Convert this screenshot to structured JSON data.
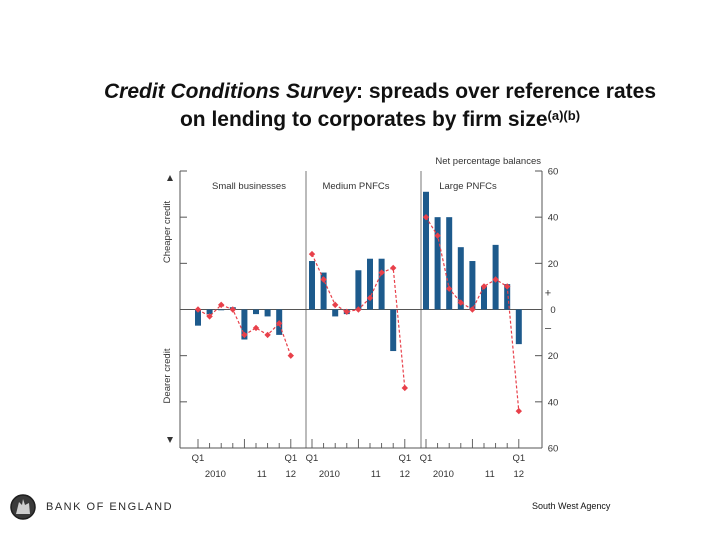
{
  "title": {
    "line1_italic": "Credit Conditions Survey",
    "line1_rest": ": spreads over reference rates",
    "line2": "on lending to corporates by firm size",
    "superscript": "(a)(b)"
  },
  "chart_data": {
    "type": "bar+line",
    "unit_label": "Net percentage balances",
    "ylim": [
      -60,
      60
    ],
    "yticks": [
      60,
      40,
      20,
      0,
      20,
      40,
      60
    ],
    "ytick_values": [
      60,
      40,
      20,
      0,
      -20,
      -40,
      -60
    ],
    "plus_label": "+",
    "minus_label": "–",
    "ylabel_top": "Cheaper credit",
    "ylabel_bottom": "Dearer credit",
    "panels": [
      {
        "name": "Small businesses",
        "categories": [
          "Q1 2010",
          "Q2 2010",
          "Q3 2010",
          "Q4 2010",
          "Q1 2011",
          "Q2 2011",
          "Q3 2011",
          "Q4 2011",
          "Q1 2012"
        ],
        "bars": [
          -7,
          -2,
          0,
          1,
          -13,
          -2,
          -3,
          -11,
          null
        ],
        "line": [
          0,
          -3,
          2,
          0,
          -11,
          -8,
          -11,
          -6,
          -20
        ],
        "x_labels": [
          {
            "text": "Q1",
            "pos": 0,
            "row": 1
          },
          {
            "text": "2010",
            "pos": 1.5,
            "row": 2
          },
          {
            "text": "11",
            "pos": 5.5,
            "row": 2
          },
          {
            "text": "Q1",
            "pos": 8,
            "row": 1
          },
          {
            "text": "12",
            "pos": 8,
            "row": 2
          }
        ]
      },
      {
        "name": "Medium PNFCs",
        "categories": [
          "Q1 2010",
          "Q2 2010",
          "Q3 2010",
          "Q4 2010",
          "Q1 2011",
          "Q2 2011",
          "Q3 2011",
          "Q4 2011",
          "Q1 2012"
        ],
        "bars": [
          21,
          16,
          -3,
          -2,
          17,
          22,
          22,
          -18,
          null
        ],
        "line": [
          24,
          13,
          2,
          -1,
          0,
          5,
          16,
          18,
          -34
        ],
        "x_labels": [
          {
            "text": "Q1",
            "pos": 0,
            "row": 1
          },
          {
            "text": "2010",
            "pos": 1.5,
            "row": 2
          },
          {
            "text": "11",
            "pos": 5.5,
            "row": 2
          },
          {
            "text": "Q1",
            "pos": 8,
            "row": 1
          },
          {
            "text": "12",
            "pos": 8,
            "row": 2
          }
        ]
      },
      {
        "name": "Large PNFCs",
        "categories": [
          "Q1 2010",
          "Q2 2010",
          "Q3 2010",
          "Q4 2010",
          "Q1 2011",
          "Q2 2011",
          "Q3 2011",
          "Q4 2011",
          "Q1 2012"
        ],
        "bars": [
          51,
          40,
          40,
          27,
          21,
          10,
          28,
          11,
          -15
        ],
        "line": [
          40,
          32,
          9,
          3,
          0,
          10,
          13,
          10,
          -44
        ],
        "x_labels": [
          {
            "text": "Q1",
            "pos": 0,
            "row": 1
          },
          {
            "text": "2010",
            "pos": 1.5,
            "row": 2
          },
          {
            "text": "11",
            "pos": 5.5,
            "row": 2
          },
          {
            "text": "Q1",
            "pos": 8,
            "row": 1
          },
          {
            "text": "12",
            "pos": 8,
            "row": 2
          }
        ]
      }
    ],
    "colors": {
      "bar": "#1d5a8c",
      "line": "#e8404a",
      "axis": "#555555",
      "text": "#333333"
    }
  },
  "footer": {
    "logo_text": "BANK OF ENGLAND",
    "agency": "South West Agency"
  }
}
